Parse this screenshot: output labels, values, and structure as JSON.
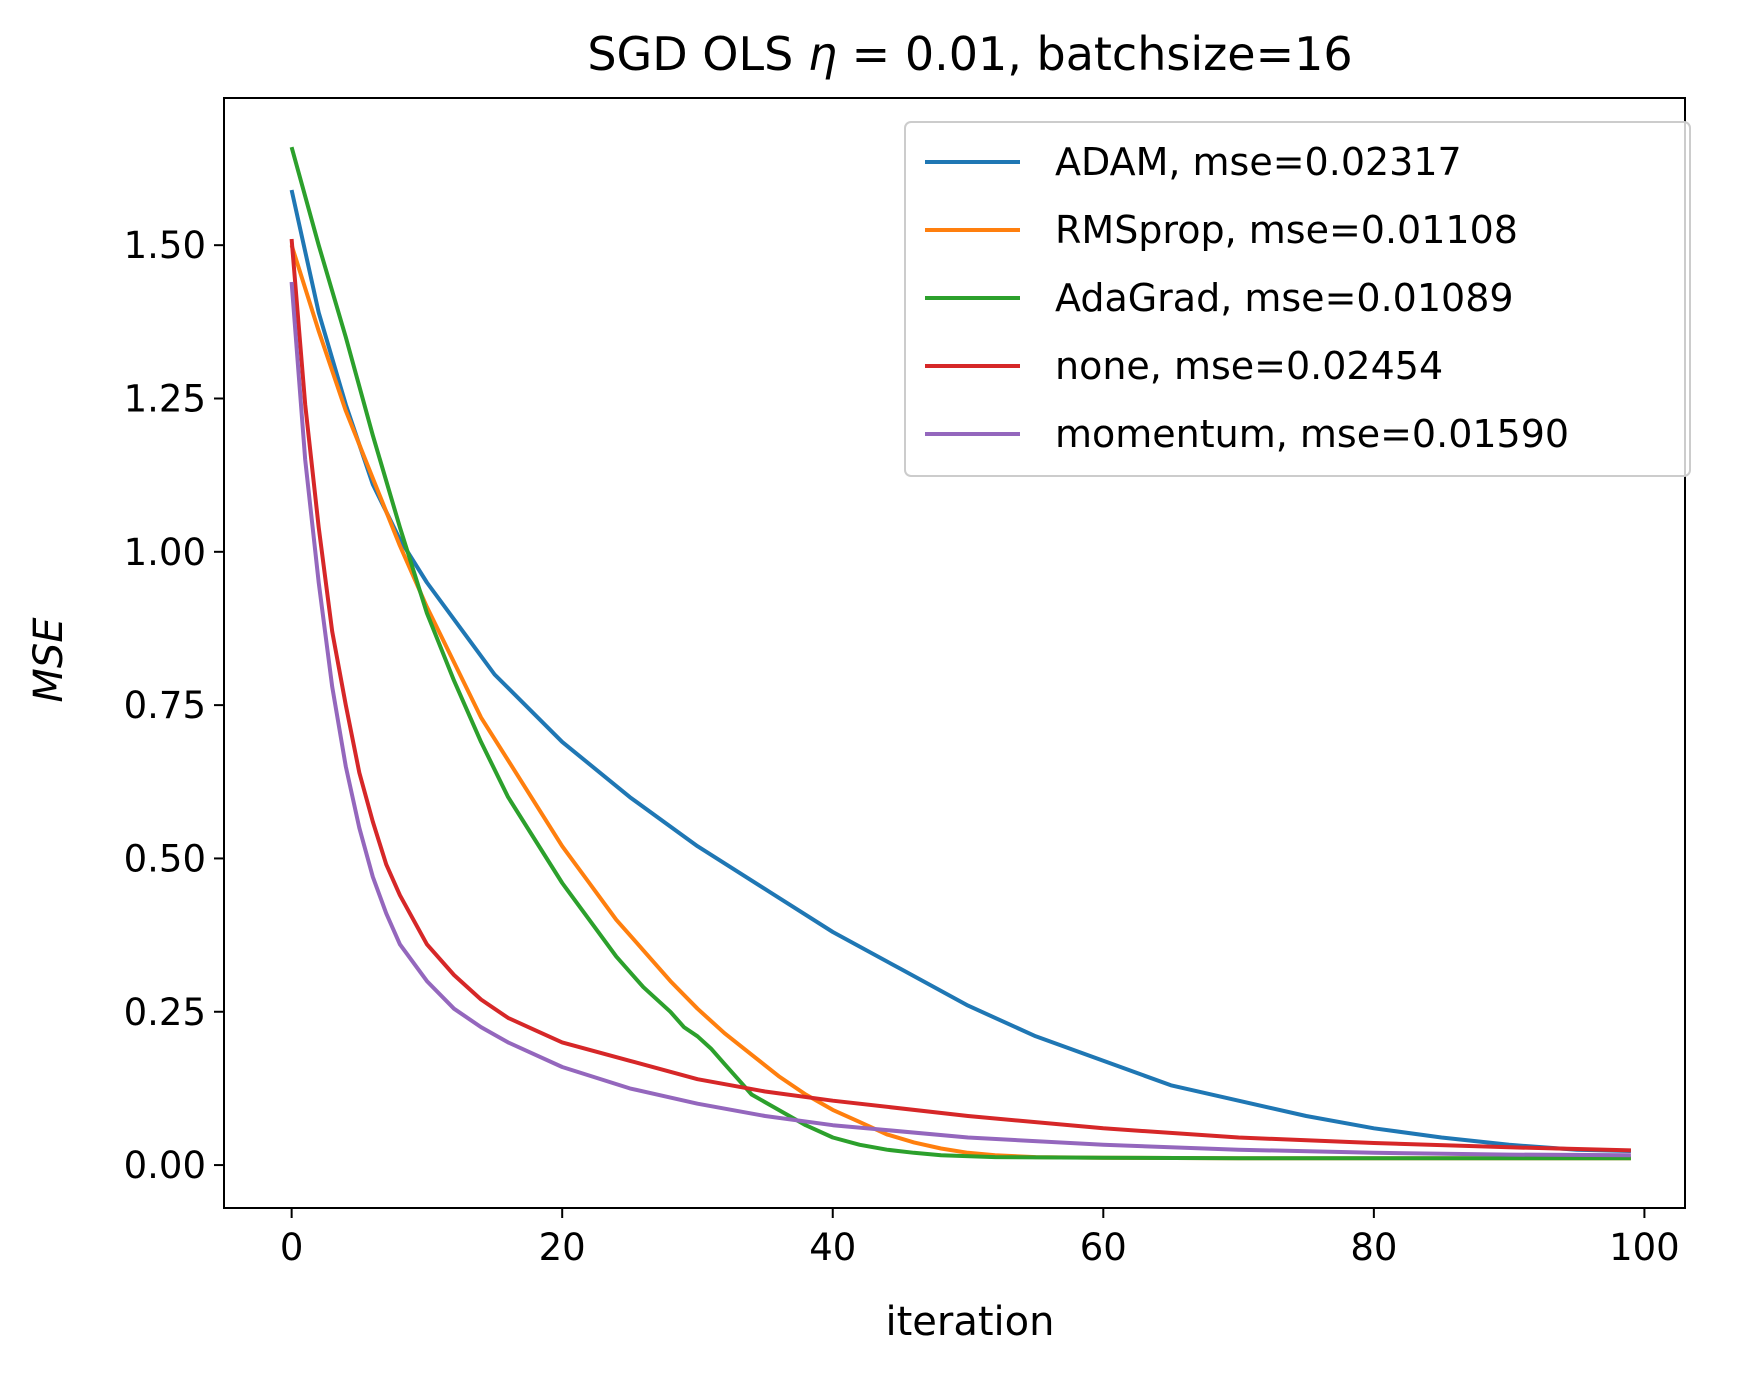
{
  "chart_data": {
    "type": "line",
    "title_parts": [
      "SGD OLS ",
      "η",
      " = ",
      " 0.01, batchsize=16"
    ],
    "xlabel": "iteration",
    "ylabel": "MSE",
    "xlim": [
      -5,
      103
    ],
    "ylim": [
      -0.07,
      1.74
    ],
    "xticks": [
      0,
      20,
      40,
      60,
      80,
      100
    ],
    "xtick_labels": [
      "0",
      "20",
      "40",
      "60",
      "80",
      "100"
    ],
    "yticks": [
      0.0,
      0.25,
      0.5,
      0.75,
      1.0,
      1.25,
      1.5
    ],
    "ytick_labels": [
      "0.00",
      "0.25",
      "0.50",
      "0.75",
      "1.00",
      "1.25",
      "1.50"
    ],
    "grid": false,
    "legend_position": "top-right",
    "series": [
      {
        "name": "ADAM, mse=0.02317",
        "color": "#1f77b4",
        "x": [
          0,
          2,
          4,
          6,
          8,
          10,
          15,
          20,
          25,
          30,
          35,
          40,
          45,
          50,
          55,
          60,
          65,
          70,
          75,
          80,
          85,
          90,
          95,
          99
        ],
        "y": [
          1.59,
          1.39,
          1.24,
          1.11,
          1.02,
          0.95,
          0.8,
          0.69,
          0.6,
          0.52,
          0.45,
          0.38,
          0.32,
          0.26,
          0.21,
          0.17,
          0.13,
          0.105,
          0.08,
          0.06,
          0.045,
          0.033,
          0.025,
          0.023
        ]
      },
      {
        "name": "RMSprop, mse=0.01108",
        "color": "#ff7f0e",
        "x": [
          0,
          2,
          4,
          6,
          8,
          10,
          12,
          14,
          16,
          18,
          20,
          22,
          24,
          26,
          28,
          30,
          32,
          34,
          36,
          38,
          40,
          42,
          44,
          46,
          48,
          50,
          52,
          55,
          60,
          70,
          80,
          90,
          99
        ],
        "y": [
          1.5,
          1.36,
          1.23,
          1.12,
          1.01,
          0.91,
          0.82,
          0.73,
          0.66,
          0.59,
          0.52,
          0.46,
          0.4,
          0.35,
          0.3,
          0.255,
          0.215,
          0.18,
          0.145,
          0.115,
          0.09,
          0.07,
          0.05,
          0.037,
          0.027,
          0.02,
          0.016,
          0.013,
          0.012,
          0.011,
          0.011,
          0.011,
          0.011
        ]
      },
      {
        "name": "AdaGrad, mse=0.01089",
        "color": "#2ca02c",
        "x": [
          0,
          2,
          4,
          6,
          8,
          10,
          12,
          14,
          16,
          18,
          20,
          22,
          24,
          26,
          28,
          29,
          30,
          31,
          32,
          33,
          34,
          36,
          38,
          40,
          42,
          44,
          46,
          48,
          52,
          60,
          70,
          80,
          90,
          99
        ],
        "y": [
          1.66,
          1.5,
          1.35,
          1.19,
          1.04,
          0.9,
          0.79,
          0.69,
          0.6,
          0.53,
          0.46,
          0.4,
          0.34,
          0.29,
          0.25,
          0.225,
          0.21,
          0.19,
          0.165,
          0.14,
          0.115,
          0.09,
          0.065,
          0.045,
          0.033,
          0.025,
          0.02,
          0.016,
          0.013,
          0.012,
          0.011,
          0.011,
          0.011,
          0.011
        ]
      },
      {
        "name": "none, mse=0.02454",
        "color": "#d62728",
        "x": [
          0,
          1,
          2,
          3,
          4,
          5,
          6,
          7,
          8,
          10,
          12,
          14,
          16,
          18,
          20,
          25,
          30,
          35,
          40,
          50,
          60,
          70,
          80,
          90,
          99
        ],
        "y": [
          1.51,
          1.24,
          1.04,
          0.87,
          0.75,
          0.64,
          0.56,
          0.49,
          0.44,
          0.36,
          0.31,
          0.27,
          0.24,
          0.22,
          0.2,
          0.17,
          0.14,
          0.12,
          0.105,
          0.08,
          0.06,
          0.045,
          0.036,
          0.029,
          0.024
        ]
      },
      {
        "name": "momentum, mse=0.01590",
        "color": "#9467bd",
        "x": [
          0,
          1,
          2,
          3,
          4,
          5,
          6,
          7,
          8,
          10,
          12,
          14,
          16,
          18,
          20,
          25,
          30,
          35,
          40,
          50,
          60,
          70,
          80,
          90,
          99
        ],
        "y": [
          1.44,
          1.15,
          0.95,
          0.78,
          0.65,
          0.55,
          0.47,
          0.41,
          0.36,
          0.3,
          0.255,
          0.225,
          0.2,
          0.18,
          0.16,
          0.125,
          0.1,
          0.08,
          0.065,
          0.045,
          0.033,
          0.025,
          0.02,
          0.017,
          0.016
        ]
      }
    ]
  }
}
